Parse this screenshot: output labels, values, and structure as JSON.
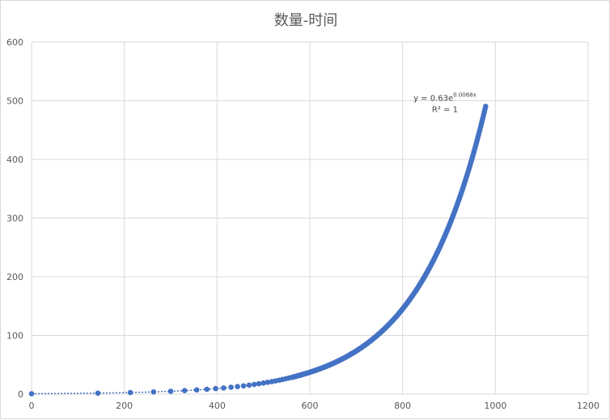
{
  "chart_data": {
    "type": "scatter",
    "title": "数量-时间",
    "xlabel": "",
    "ylabel": "",
    "xlim": [
      0,
      1200
    ],
    "ylim": [
      0,
      600
    ],
    "x_ticks": [
      "0",
      "200",
      "400",
      "600",
      "800",
      "1000",
      "1200"
    ],
    "y_ticks": [
      "0",
      "100",
      "200",
      "300",
      "400",
      "500",
      "600"
    ],
    "grid": true,
    "legend": "none",
    "trendline": {
      "type": "exponential",
      "a": 0.63,
      "b": 0.0068,
      "equation_prefix": "y = 0.63e",
      "equation_exponent": "0.0068x",
      "r_squared_text": "R² = 1"
    },
    "series": [
      {
        "color": "#4472c4",
        "sparse_x": [
          0,
          143,
          213,
          263,
          300,
          330,
          356,
          378,
          397,
          414,
          430,
          444,
          457,
          469,
          480,
          490,
          500,
          509,
          518,
          526,
          534,
          541,
          548,
          555,
          562
        ],
        "dense_x_range": [
          562,
          980
        ],
        "dense_x_step": 1.5
      }
    ]
  }
}
